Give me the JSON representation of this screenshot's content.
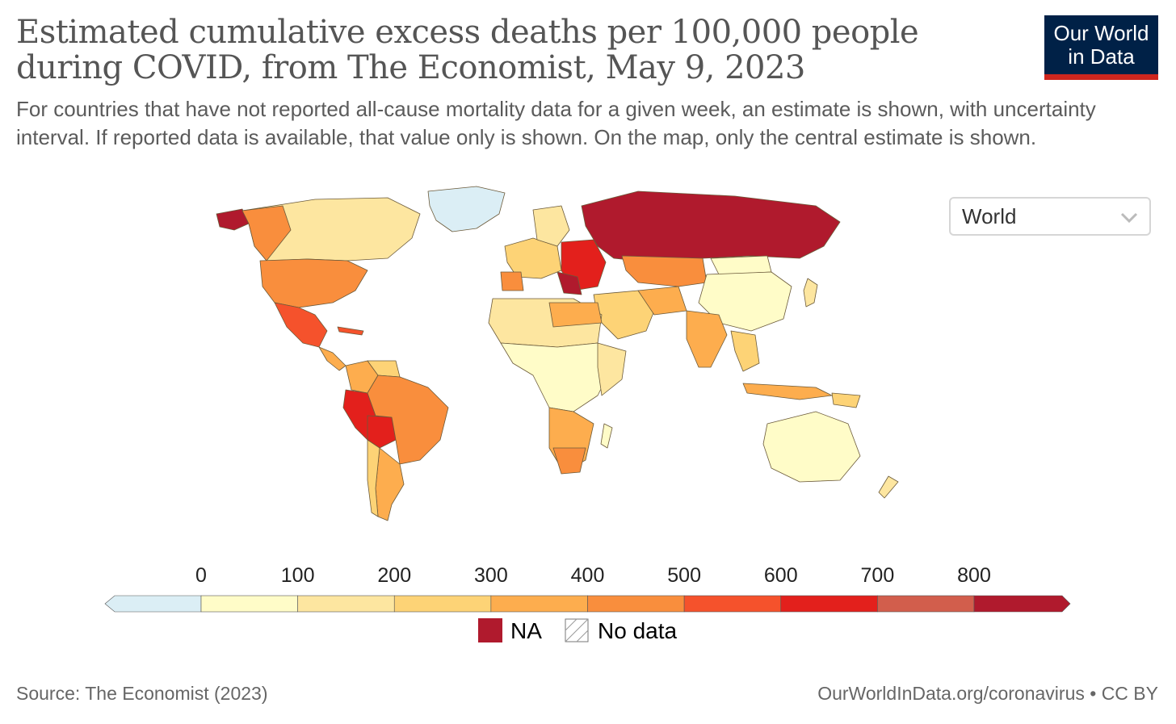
{
  "header": {
    "title_line1": "Estimated cumulative excess deaths per 100,000 people",
    "title_line2": "during COVID, from The Economist, May 9, 2023",
    "subtitle": "For countries that have not reported all-cause mortality data for a given week, an estimate is shown, with uncertainty interval. If reported data is available, that value only is shown. On the map, only the central estimate is shown."
  },
  "logo": {
    "line1": "Our World",
    "line2": "in Data",
    "bg_color": "#002147",
    "accent_color": "#ce261e"
  },
  "region_selector": {
    "value": "World",
    "icon": "chevron-down-icon"
  },
  "legend": {
    "ticks": [
      "0",
      "100",
      "200",
      "300",
      "400",
      "500",
      "600",
      "700",
      "800"
    ],
    "bins": [
      {
        "color": "#dbeef5"
      },
      {
        "color": "#fffcc8"
      },
      {
        "color": "#fde6a0"
      },
      {
        "color": "#fdd376"
      },
      {
        "color": "#fdad4e"
      },
      {
        "color": "#f98e3d"
      },
      {
        "color": "#f5522c"
      },
      {
        "color": "#e3201c"
      },
      {
        "color": "#d25e4c"
      },
      {
        "color": "#b01a2d"
      }
    ],
    "na_label": "NA",
    "na_color": "#b01a2d",
    "nodata_label": "No data"
  },
  "footer": {
    "source": "Source: The Economist (2023)",
    "url": "OurWorldInData.org/coronavirus • CC BY"
  }
}
